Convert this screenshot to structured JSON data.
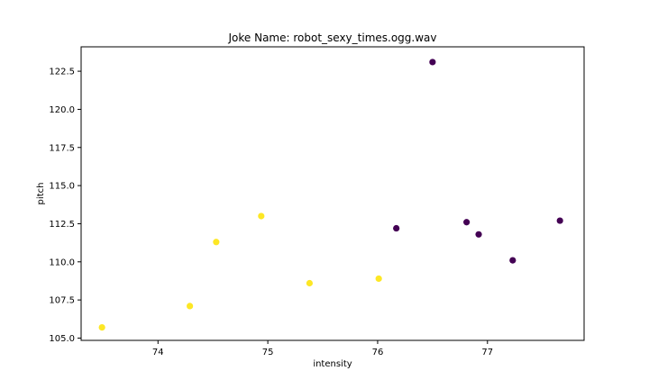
{
  "chart_data": {
    "type": "scatter",
    "title": "Joke Name: robot_sexy_times.ogg.wav",
    "xlabel": "intensity",
    "ylabel": "pitch",
    "xlim": [
      73.3,
      77.88
    ],
    "ylim": [
      104.85,
      124.1
    ],
    "xticks": [
      74,
      75,
      76,
      77
    ],
    "yticks": [
      105.0,
      107.5,
      110.0,
      112.5,
      115.0,
      117.5,
      120.0,
      122.5
    ],
    "ytick_labels": [
      "105.0",
      "107.5",
      "110.0",
      "112.5",
      "115.0",
      "117.5",
      "120.0",
      "122.5"
    ],
    "grid": false,
    "colors": {
      "yellow": "#fde725",
      "purple": "#440154"
    },
    "points": [
      {
        "x": 73.49,
        "y": 105.7,
        "color": "yellow"
      },
      {
        "x": 74.29,
        "y": 107.1,
        "color": "yellow"
      },
      {
        "x": 74.53,
        "y": 111.3,
        "color": "yellow"
      },
      {
        "x": 74.94,
        "y": 113.0,
        "color": "yellow"
      },
      {
        "x": 75.38,
        "y": 108.6,
        "color": "yellow"
      },
      {
        "x": 76.01,
        "y": 108.9,
        "color": "yellow"
      },
      {
        "x": 76.17,
        "y": 112.2,
        "color": "purple"
      },
      {
        "x": 76.5,
        "y": 123.1,
        "color": "purple"
      },
      {
        "x": 76.81,
        "y": 112.6,
        "color": "purple"
      },
      {
        "x": 76.92,
        "y": 111.8,
        "color": "purple"
      },
      {
        "x": 77.23,
        "y": 110.1,
        "color": "purple"
      },
      {
        "x": 77.66,
        "y": 112.7,
        "color": "purple"
      }
    ]
  }
}
